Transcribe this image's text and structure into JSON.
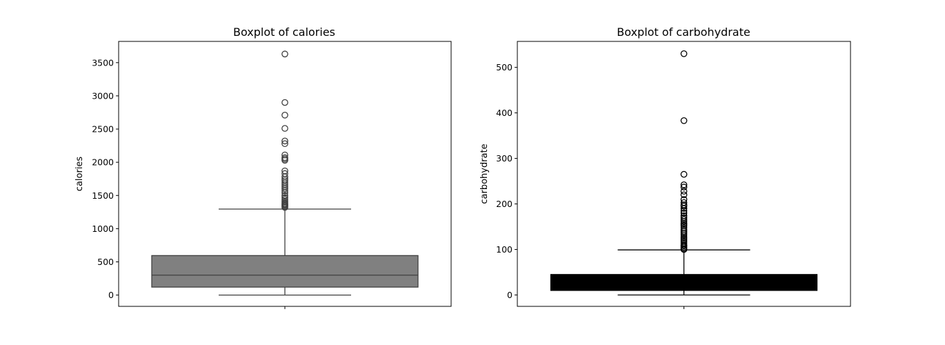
{
  "chart_data": [
    {
      "type": "box",
      "title": "Boxplot of calories",
      "xlabel": "",
      "ylabel": "calories",
      "ylim": [
        -170,
        3820
      ],
      "yticks": [
        0,
        500,
        1000,
        1500,
        2000,
        2500,
        3000,
        3500
      ],
      "colors": {
        "box_fill": "#808080",
        "box_line": "#3f3f3f"
      },
      "box": {
        "whisker_low": 0,
        "q1": 120,
        "median": 300,
        "q3": 595,
        "whisker_high": 1295
      },
      "outliers": [
        1320,
        1335,
        1350,
        1365,
        1380,
        1400,
        1420,
        1445,
        1470,
        1500,
        1540,
        1570,
        1600,
        1630,
        1660,
        1690,
        1720,
        1745,
        1780,
        1830,
        1870,
        2030,
        2050,
        2070,
        2110,
        2280,
        2320,
        2510,
        2710,
        2900,
        3630
      ]
    },
    {
      "type": "box",
      "title": "Boxplot of carbohydrate",
      "xlabel": "",
      "ylabel": "carbohydrate",
      "ylim": [
        -25,
        557
      ],
      "yticks": [
        0,
        100,
        200,
        300,
        400,
        500
      ],
      "colors": {
        "box_fill": "#000000",
        "box_line": "#000000"
      },
      "box": {
        "whisker_low": 0,
        "q1": 10,
        "median": 20,
        "q3": 45,
        "whisker_high": 99
      },
      "outliers": [
        100,
        102,
        105,
        108,
        110,
        114,
        118,
        122,
        125,
        128,
        132,
        136,
        140,
        144,
        148,
        152,
        155,
        158,
        162,
        166,
        170,
        174,
        180,
        185,
        190,
        195,
        198,
        203,
        210,
        220,
        228,
        237,
        242,
        265,
        383,
        530
      ]
    }
  ]
}
